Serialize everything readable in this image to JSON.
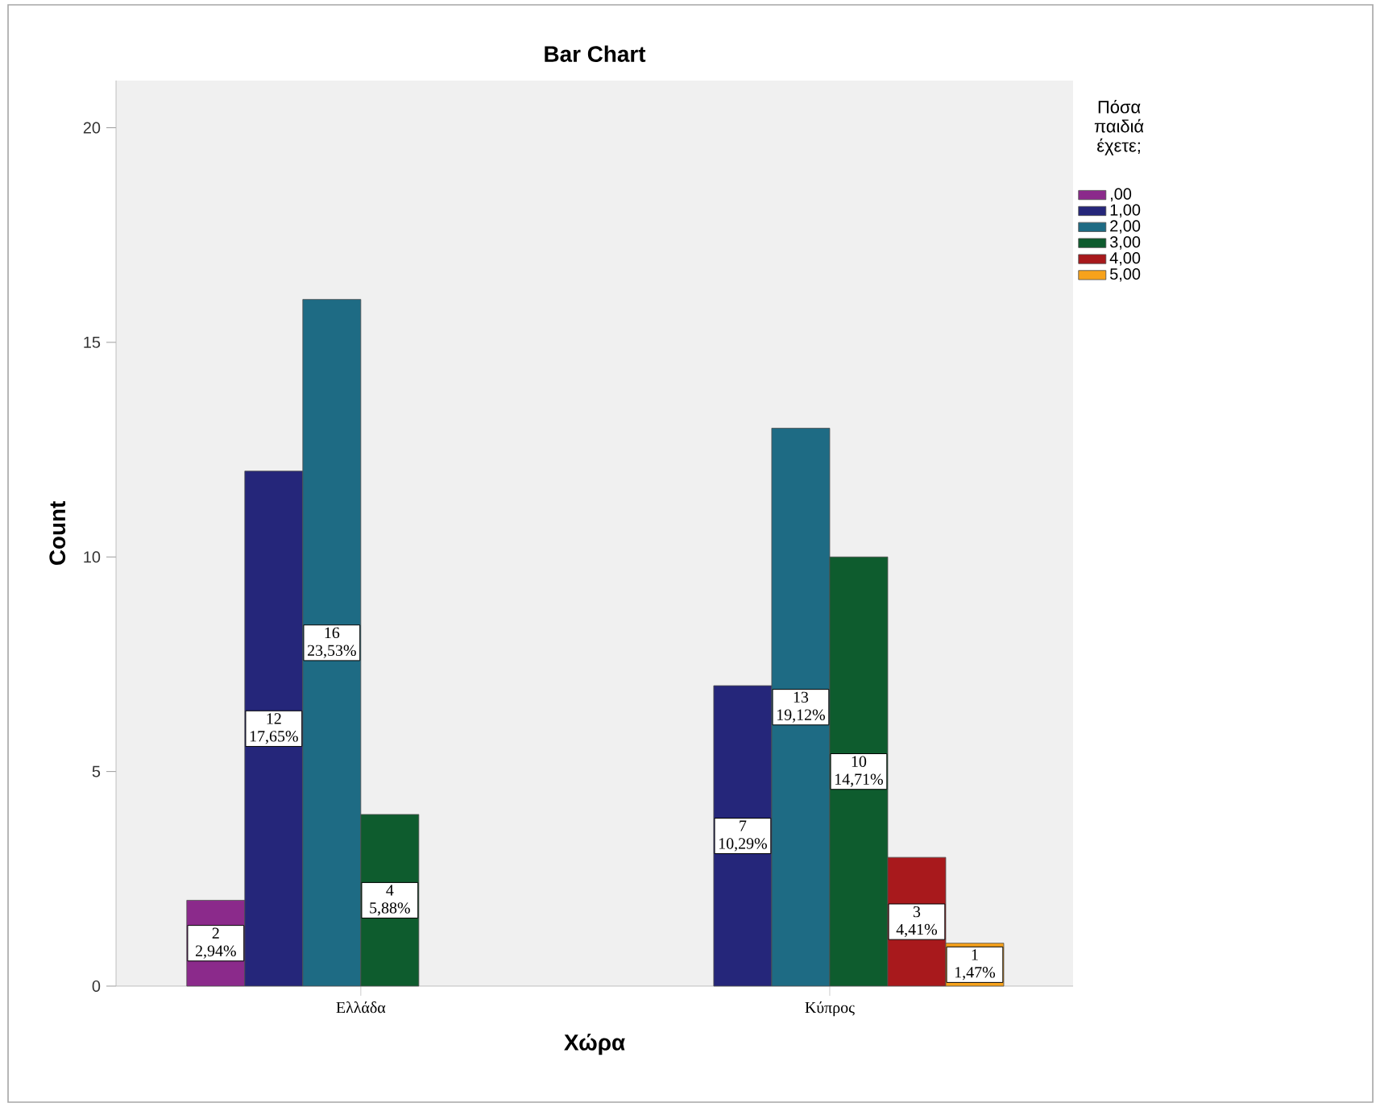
{
  "chart_data": {
    "type": "bar",
    "title": "Bar Chart",
    "xlabel": "Χώρα",
    "ylabel": "Count",
    "legend_title": "Πόσα παιδιά έχετε;",
    "categories": [
      "Ελλάδα",
      "Κύπρος"
    ],
    "series": [
      {
        "name": ",00",
        "color": "#8b2a8b",
        "values": [
          2,
          null
        ],
        "value_labels": [
          "2 2,94%",
          null
        ]
      },
      {
        "name": "1,00",
        "color": "#25267a",
        "values": [
          12,
          7
        ],
        "value_labels": [
          "12 17,65%",
          "7 10,29%"
        ]
      },
      {
        "name": "2,00",
        "color": "#1e6b84",
        "values": [
          16,
          13
        ],
        "value_labels": [
          "16 23,53%",
          "13 19,12%"
        ]
      },
      {
        "name": "3,00",
        "color": "#0e5c2e",
        "values": [
          4,
          10
        ],
        "value_labels": [
          "4 5,88%",
          "10 14,71%"
        ]
      },
      {
        "name": "4,00",
        "color": "#a8191c",
        "values": [
          null,
          3
        ],
        "value_labels": [
          null,
          "3 4,41%"
        ]
      },
      {
        "name": "5,00",
        "color": "#f7a21b",
        "values": [
          null,
          1
        ],
        "value_labels": [
          null,
          "1 1,47%"
        ]
      }
    ],
    "ylim": [
      0,
      21.1
    ],
    "yticks": [
      0,
      5,
      10,
      15,
      20
    ],
    "grid": false,
    "legend": "top right"
  }
}
